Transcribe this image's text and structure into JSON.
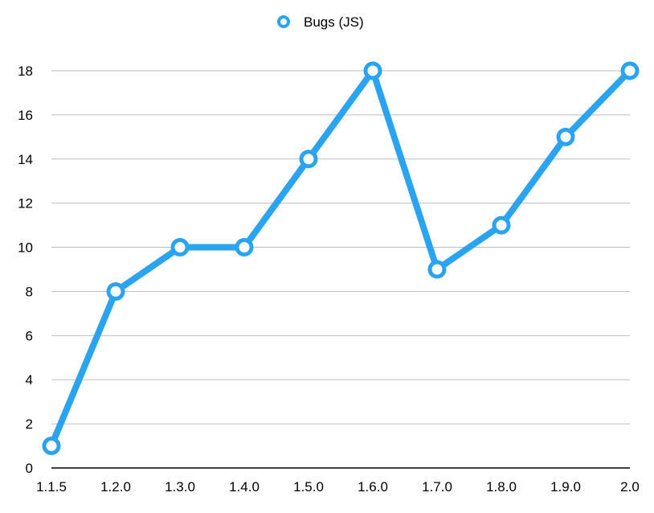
{
  "chart_data": {
    "type": "line",
    "title": "",
    "xlabel": "",
    "ylabel": "",
    "categories": [
      "1.1.5",
      "1.2.0",
      "1.3.0",
      "1.4.0",
      "1.5.0",
      "1.6.0",
      "1.7.0",
      "1.8.0",
      "1.9.0",
      "2.0"
    ],
    "series": [
      {
        "name": "Bugs (JS)",
        "values": [
          1,
          8,
          10,
          10,
          14,
          18,
          9,
          11,
          15,
          18
        ]
      }
    ],
    "ylim": [
      0,
      18
    ],
    "yticks": [
      0,
      2,
      4,
      6,
      8,
      10,
      12,
      14,
      16,
      18
    ],
    "grid": true,
    "legend_position": "top-center",
    "colors": {
      "series": "#2aa3f0",
      "grid": "#bdbdbd",
      "axis": "#000000",
      "marker_fill": "#ffffff"
    }
  }
}
